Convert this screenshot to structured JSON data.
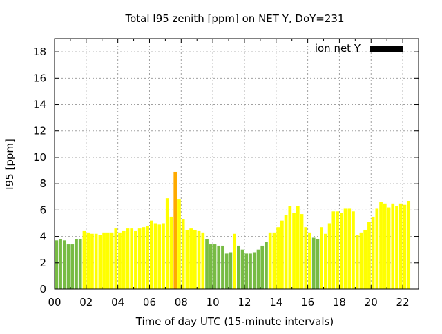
{
  "chart_data": {
    "type": "bar",
    "title": "Total I95 zenith [ppm] on NET Y, DoY=231",
    "xlabel": "Time of day UTC (15-minute intervals)",
    "ylabel": "I95 [ppm]",
    "xlim": [
      0,
      23
    ],
    "ylim": [
      0,
      19
    ],
    "x_ticks": [
      "00",
      "02",
      "04",
      "06",
      "08",
      "10",
      "12",
      "14",
      "16",
      "18",
      "20",
      "22"
    ],
    "y_ticks": [
      "0",
      "2",
      "4",
      "6",
      "8",
      "10",
      "12",
      "14",
      "16",
      "18"
    ],
    "grid": true,
    "legend": {
      "label": "ion net Y",
      "position": "top-right",
      "color": "#000000"
    },
    "colors": {
      "low": "#77bb44",
      "medium": "#ffff00",
      "high": "#ffaa00"
    },
    "interval_hours": 0.25,
    "values": [
      3.7,
      3.8,
      3.7,
      3.4,
      3.4,
      3.8,
      3.8,
      4.4,
      4.3,
      4.2,
      4.2,
      4.1,
      4.3,
      4.3,
      4.3,
      4.6,
      4.3,
      4.4,
      4.6,
      4.6,
      4.4,
      4.6,
      4.7,
      4.8,
      5.2,
      5.0,
      4.9,
      5.0,
      6.9,
      5.5,
      8.9,
      6.8,
      5.3,
      4.5,
      4.6,
      4.5,
      4.4,
      4.3,
      3.8,
      3.4,
      3.4,
      3.3,
      3.3,
      2.7,
      2.8,
      4.2,
      3.3,
      3.0,
      2.7,
      2.7,
      2.8,
      3.0,
      3.3,
      3.6,
      4.3,
      4.3,
      4.7,
      5.2,
      5.6,
      6.3,
      5.8,
      6.3,
      5.7,
      4.7,
      4.3,
      3.9,
      3.8,
      4.7,
      4.2,
      5.0,
      5.9,
      5.9,
      5.8,
      6.1,
      6.1,
      5.9,
      4.1,
      4.3,
      4.5,
      5.1,
      5.5,
      6.1,
      6.6,
      6.5,
      6.2,
      6.5,
      6.3,
      6.5,
      6.4,
      6.7
    ],
    "categories": [
      "low",
      "low",
      "low",
      "low",
      "low",
      "low",
      "low",
      "medium",
      "medium",
      "medium",
      "medium",
      "medium",
      "medium",
      "medium",
      "medium",
      "medium",
      "medium",
      "medium",
      "medium",
      "medium",
      "medium",
      "medium",
      "medium",
      "medium",
      "medium",
      "medium",
      "medium",
      "medium",
      "medium",
      "medium",
      "high",
      "medium",
      "medium",
      "medium",
      "medium",
      "medium",
      "medium",
      "medium",
      "low",
      "low",
      "low",
      "low",
      "low",
      "low",
      "low",
      "medium",
      "low",
      "low",
      "low",
      "low",
      "low",
      "low",
      "low",
      "low",
      "medium",
      "medium",
      "medium",
      "medium",
      "medium",
      "medium",
      "medium",
      "medium",
      "medium",
      "medium",
      "medium",
      "low",
      "low",
      "medium",
      "medium",
      "medium",
      "medium",
      "medium",
      "medium",
      "medium",
      "medium",
      "medium",
      "medium",
      "medium",
      "medium",
      "medium",
      "medium",
      "medium",
      "medium",
      "medium",
      "medium",
      "medium",
      "medium",
      "medium",
      "medium",
      "medium"
    ]
  }
}
